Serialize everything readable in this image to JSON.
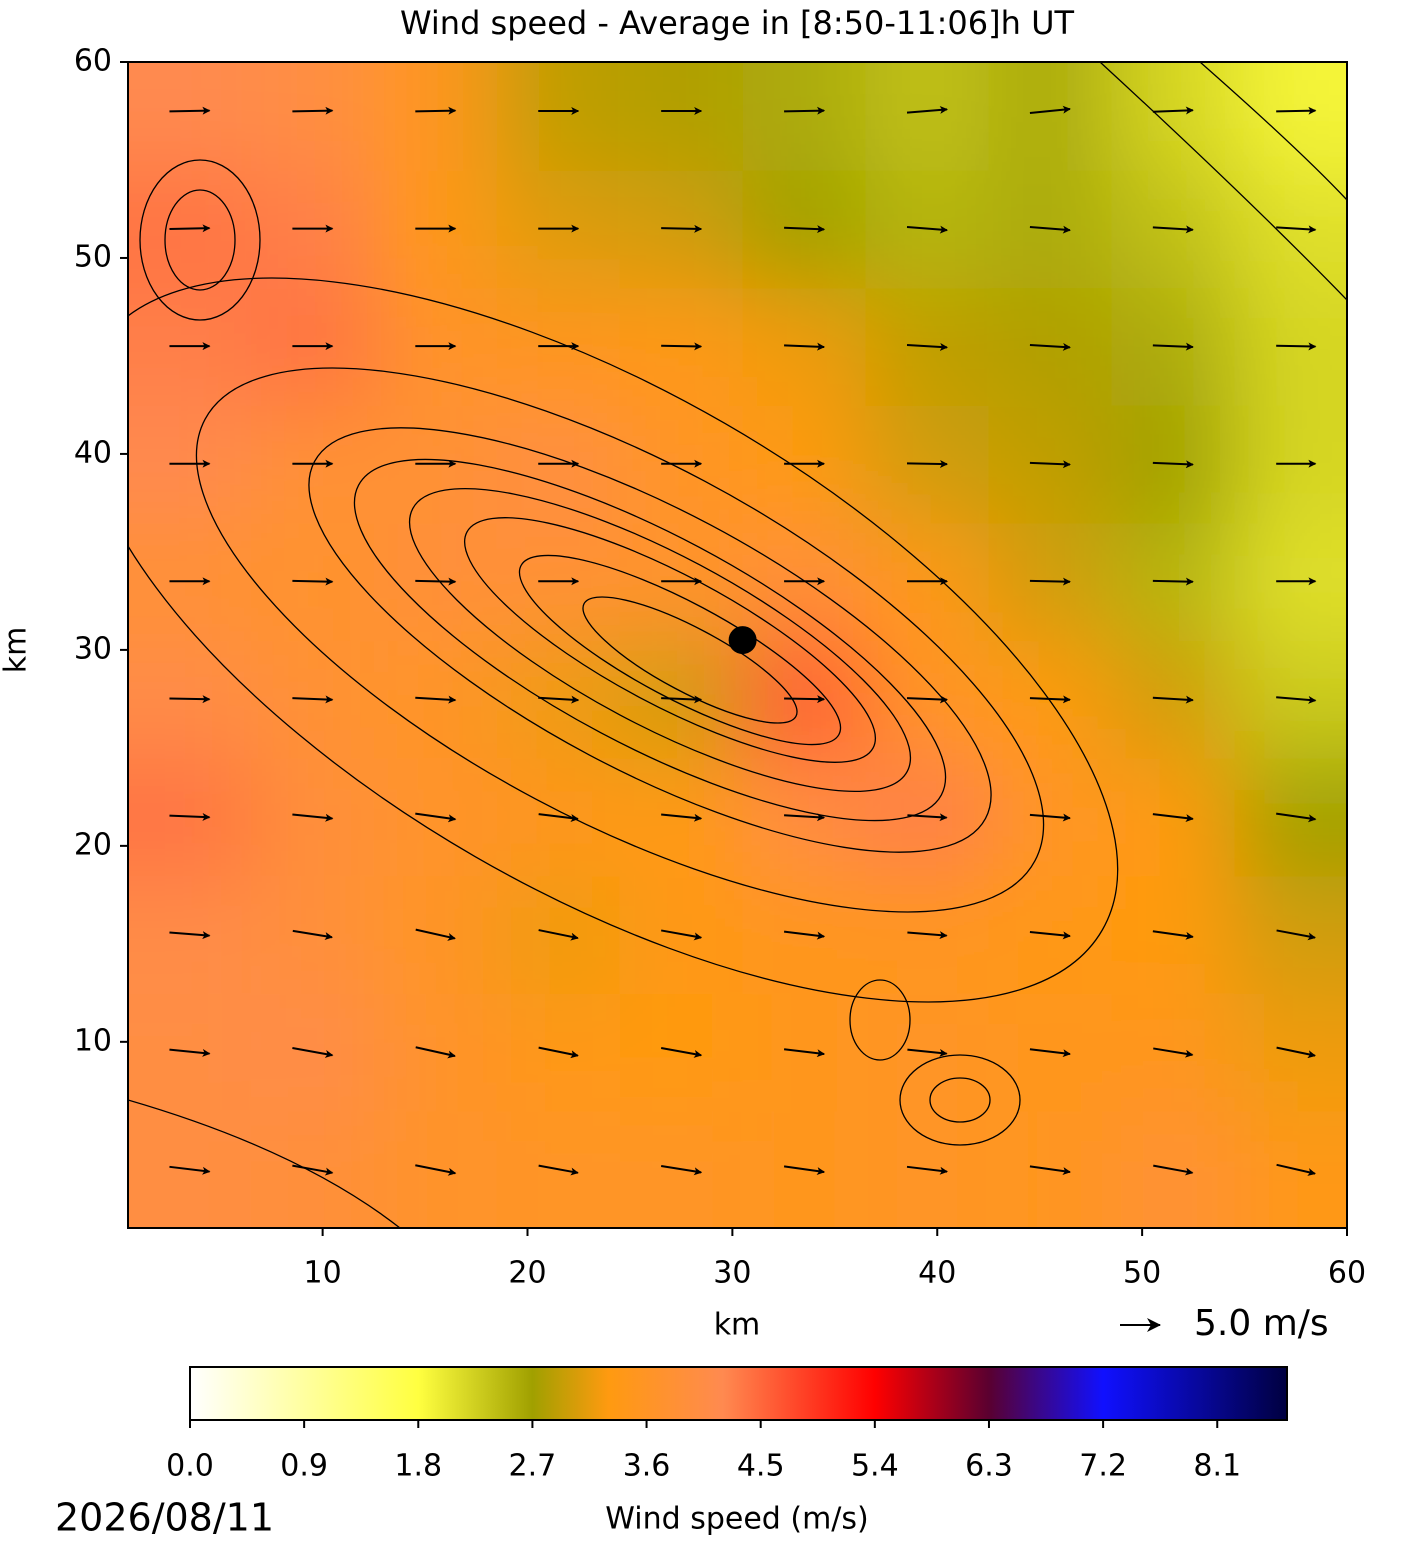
{
  "chart_data": {
    "type": "contour",
    "title": "Wind speed - Average in [8:50-11:06]h UT",
    "x_label": "km",
    "y_label": "km",
    "xlim": [
      0.5,
      60
    ],
    "ylim": [
      0.5,
      60
    ],
    "xticks": [
      10,
      20,
      30,
      40,
      50,
      60
    ],
    "yticks": [
      10,
      20,
      30,
      40,
      50,
      60
    ],
    "x": [
      3.5,
      9.5,
      15.5,
      21.5,
      27.5,
      33.5,
      39.5,
      45.5,
      51.5,
      57.5
    ],
    "y": [
      3.5,
      9.5,
      15.5,
      21.5,
      27.5,
      33.5,
      39.5,
      45.5,
      51.5,
      57.5
    ],
    "z": [
      [
        4.0,
        3.9,
        3.7,
        3.6,
        3.6,
        3.5,
        3.6,
        3.5,
        3.8,
        3.4
      ],
      [
        4.0,
        4.1,
        3.7,
        3.4,
        3.3,
        3.5,
        3.6,
        3.5,
        3.5,
        3.2
      ],
      [
        4.1,
        3.9,
        3.6,
        3.2,
        3.4,
        3.5,
        3.5,
        3.4,
        3.3,
        3.0
      ],
      [
        4.4,
        3.9,
        3.7,
        3.5,
        3.3,
        4.0,
        4.3,
        3.6,
        3.3,
        2.7
      ],
      [
        4.1,
        3.8,
        3.6,
        3.2,
        3.0,
        4.6,
        3.6,
        3.3,
        3.0,
        2.3
      ],
      [
        3.8,
        3.7,
        3.9,
        3.8,
        3.7,
        3.9,
        3.4,
        3.0,
        2.5,
        2.1
      ],
      [
        4.2,
        3.8,
        3.8,
        4.0,
        3.6,
        3.3,
        3.0,
        2.9,
        2.7,
        2.2
      ],
      [
        4.3,
        4.4,
        3.7,
        3.5,
        3.4,
        3.2,
        2.9,
        2.8,
        2.6,
        2.2
      ],
      [
        4.4,
        4.3,
        3.4,
        3.1,
        3.0,
        2.7,
        2.5,
        2.6,
        2.4,
        2.1
      ],
      [
        4.2,
        4.0,
        3.5,
        2.9,
        2.8,
        2.6,
        2.4,
        2.6,
        2.2,
        1.9
      ]
    ],
    "u": [
      [
        5.0,
        5.0,
        5.0,
        4.9,
        5.0,
        5.0,
        5.0,
        5.0,
        4.9,
        4.8
      ],
      [
        5.0,
        5.0,
        4.9,
        4.9,
        5.0,
        5.0,
        4.9,
        5.0,
        4.9,
        4.8
      ],
      [
        5.0,
        4.9,
        4.9,
        4.9,
        5.0,
        5.0,
        4.9,
        5.0,
        5.0,
        4.8
      ],
      [
        5.0,
        5.0,
        5.0,
        4.9,
        5.0,
        5.0,
        4.9,
        5.0,
        5.0,
        4.9
      ],
      [
        5.0,
        5.0,
        5.0,
        5.0,
        5.0,
        5.0,
        5.0,
        5.0,
        5.0,
        4.9
      ],
      [
        5.0,
        5.0,
        5.0,
        5.0,
        5.0,
        5.0,
        5.0,
        5.0,
        5.0,
        4.9
      ],
      [
        5.0,
        5.0,
        5.0,
        5.0,
        5.0,
        5.0,
        5.0,
        5.0,
        5.0,
        4.9
      ],
      [
        5.0,
        5.0,
        5.0,
        5.0,
        5.0,
        5.0,
        5.0,
        5.0,
        5.0,
        4.9
      ],
      [
        5.0,
        5.0,
        5.0,
        5.0,
        5.0,
        5.0,
        5.0,
        5.0,
        5.0,
        4.9
      ],
      [
        5.0,
        5.0,
        5.0,
        5.0,
        5.0,
        5.0,
        5.0,
        5.0,
        5.0,
        4.9
      ]
    ],
    "v": [
      [
        -0.6,
        -0.9,
        -1.0,
        -0.9,
        -0.8,
        -0.7,
        -0.6,
        -0.7,
        -0.9,
        -1.1
      ],
      [
        -0.5,
        -0.9,
        -1.1,
        -1.0,
        -0.9,
        -0.6,
        -0.5,
        -0.6,
        -0.8,
        -1.0
      ],
      [
        -0.4,
        -0.8,
        -1.1,
        -1.0,
        -0.9,
        -0.6,
        -0.4,
        -0.5,
        -0.7,
        -0.9
      ],
      [
        -0.2,
        -0.5,
        -0.7,
        -0.6,
        -0.5,
        -0.3,
        -0.3,
        -0.4,
        -0.6,
        -0.7
      ],
      [
        -0.1,
        -0.2,
        -0.3,
        -0.3,
        -0.2,
        -0.1,
        -0.2,
        -0.2,
        -0.3,
        -0.4
      ],
      [
        0.0,
        -0.1,
        -0.1,
        0.0,
        0.0,
        0.0,
        0.0,
        -0.1,
        -0.1,
        0.0
      ],
      [
        0.0,
        0.0,
        0.0,
        0.0,
        0.0,
        0.0,
        -0.1,
        -0.2,
        -0.2,
        0.0
      ],
      [
        0.0,
        0.0,
        0.0,
        0.0,
        -0.1,
        -0.2,
        -0.3,
        -0.3,
        -0.2,
        -0.1
      ],
      [
        0.1,
        0.0,
        0.0,
        0.0,
        -0.1,
        -0.2,
        -0.4,
        -0.4,
        -0.3,
        -0.3
      ],
      [
        0.1,
        0.1,
        0.1,
        0.0,
        0.0,
        0.1,
        0.4,
        0.5,
        0.2,
        0.1
      ]
    ],
    "marker": {
      "x": 30.5,
      "y": 30.5
    },
    "quiver_key": {
      "value": 5,
      "label": "5.0 m/s"
    },
    "colorbar": {
      "label": "Wind speed (m/s)",
      "lim": [
        0,
        8.65
      ],
      "ticks": [
        {
          "value": 0,
          "label": "0.0"
        },
        0.9,
        1.8,
        2.7,
        3.6,
        4.5,
        5.4,
        6.3,
        7.2,
        8.1
      ],
      "colorscale": [
        [
          0,
          "#ffffff"
        ],
        [
          1.8,
          "#ffff40"
        ],
        [
          2.7,
          "#a0a000"
        ],
        [
          3.3,
          "#ff9a10"
        ],
        [
          4.2,
          "#ff8a50"
        ],
        [
          5.4,
          "#ff0000"
        ],
        [
          6.3,
          "#5a0030"
        ],
        [
          7.2,
          "#1010ff"
        ],
        [
          8.65,
          "#000040"
        ]
      ]
    },
    "date": "2026/08/11"
  }
}
